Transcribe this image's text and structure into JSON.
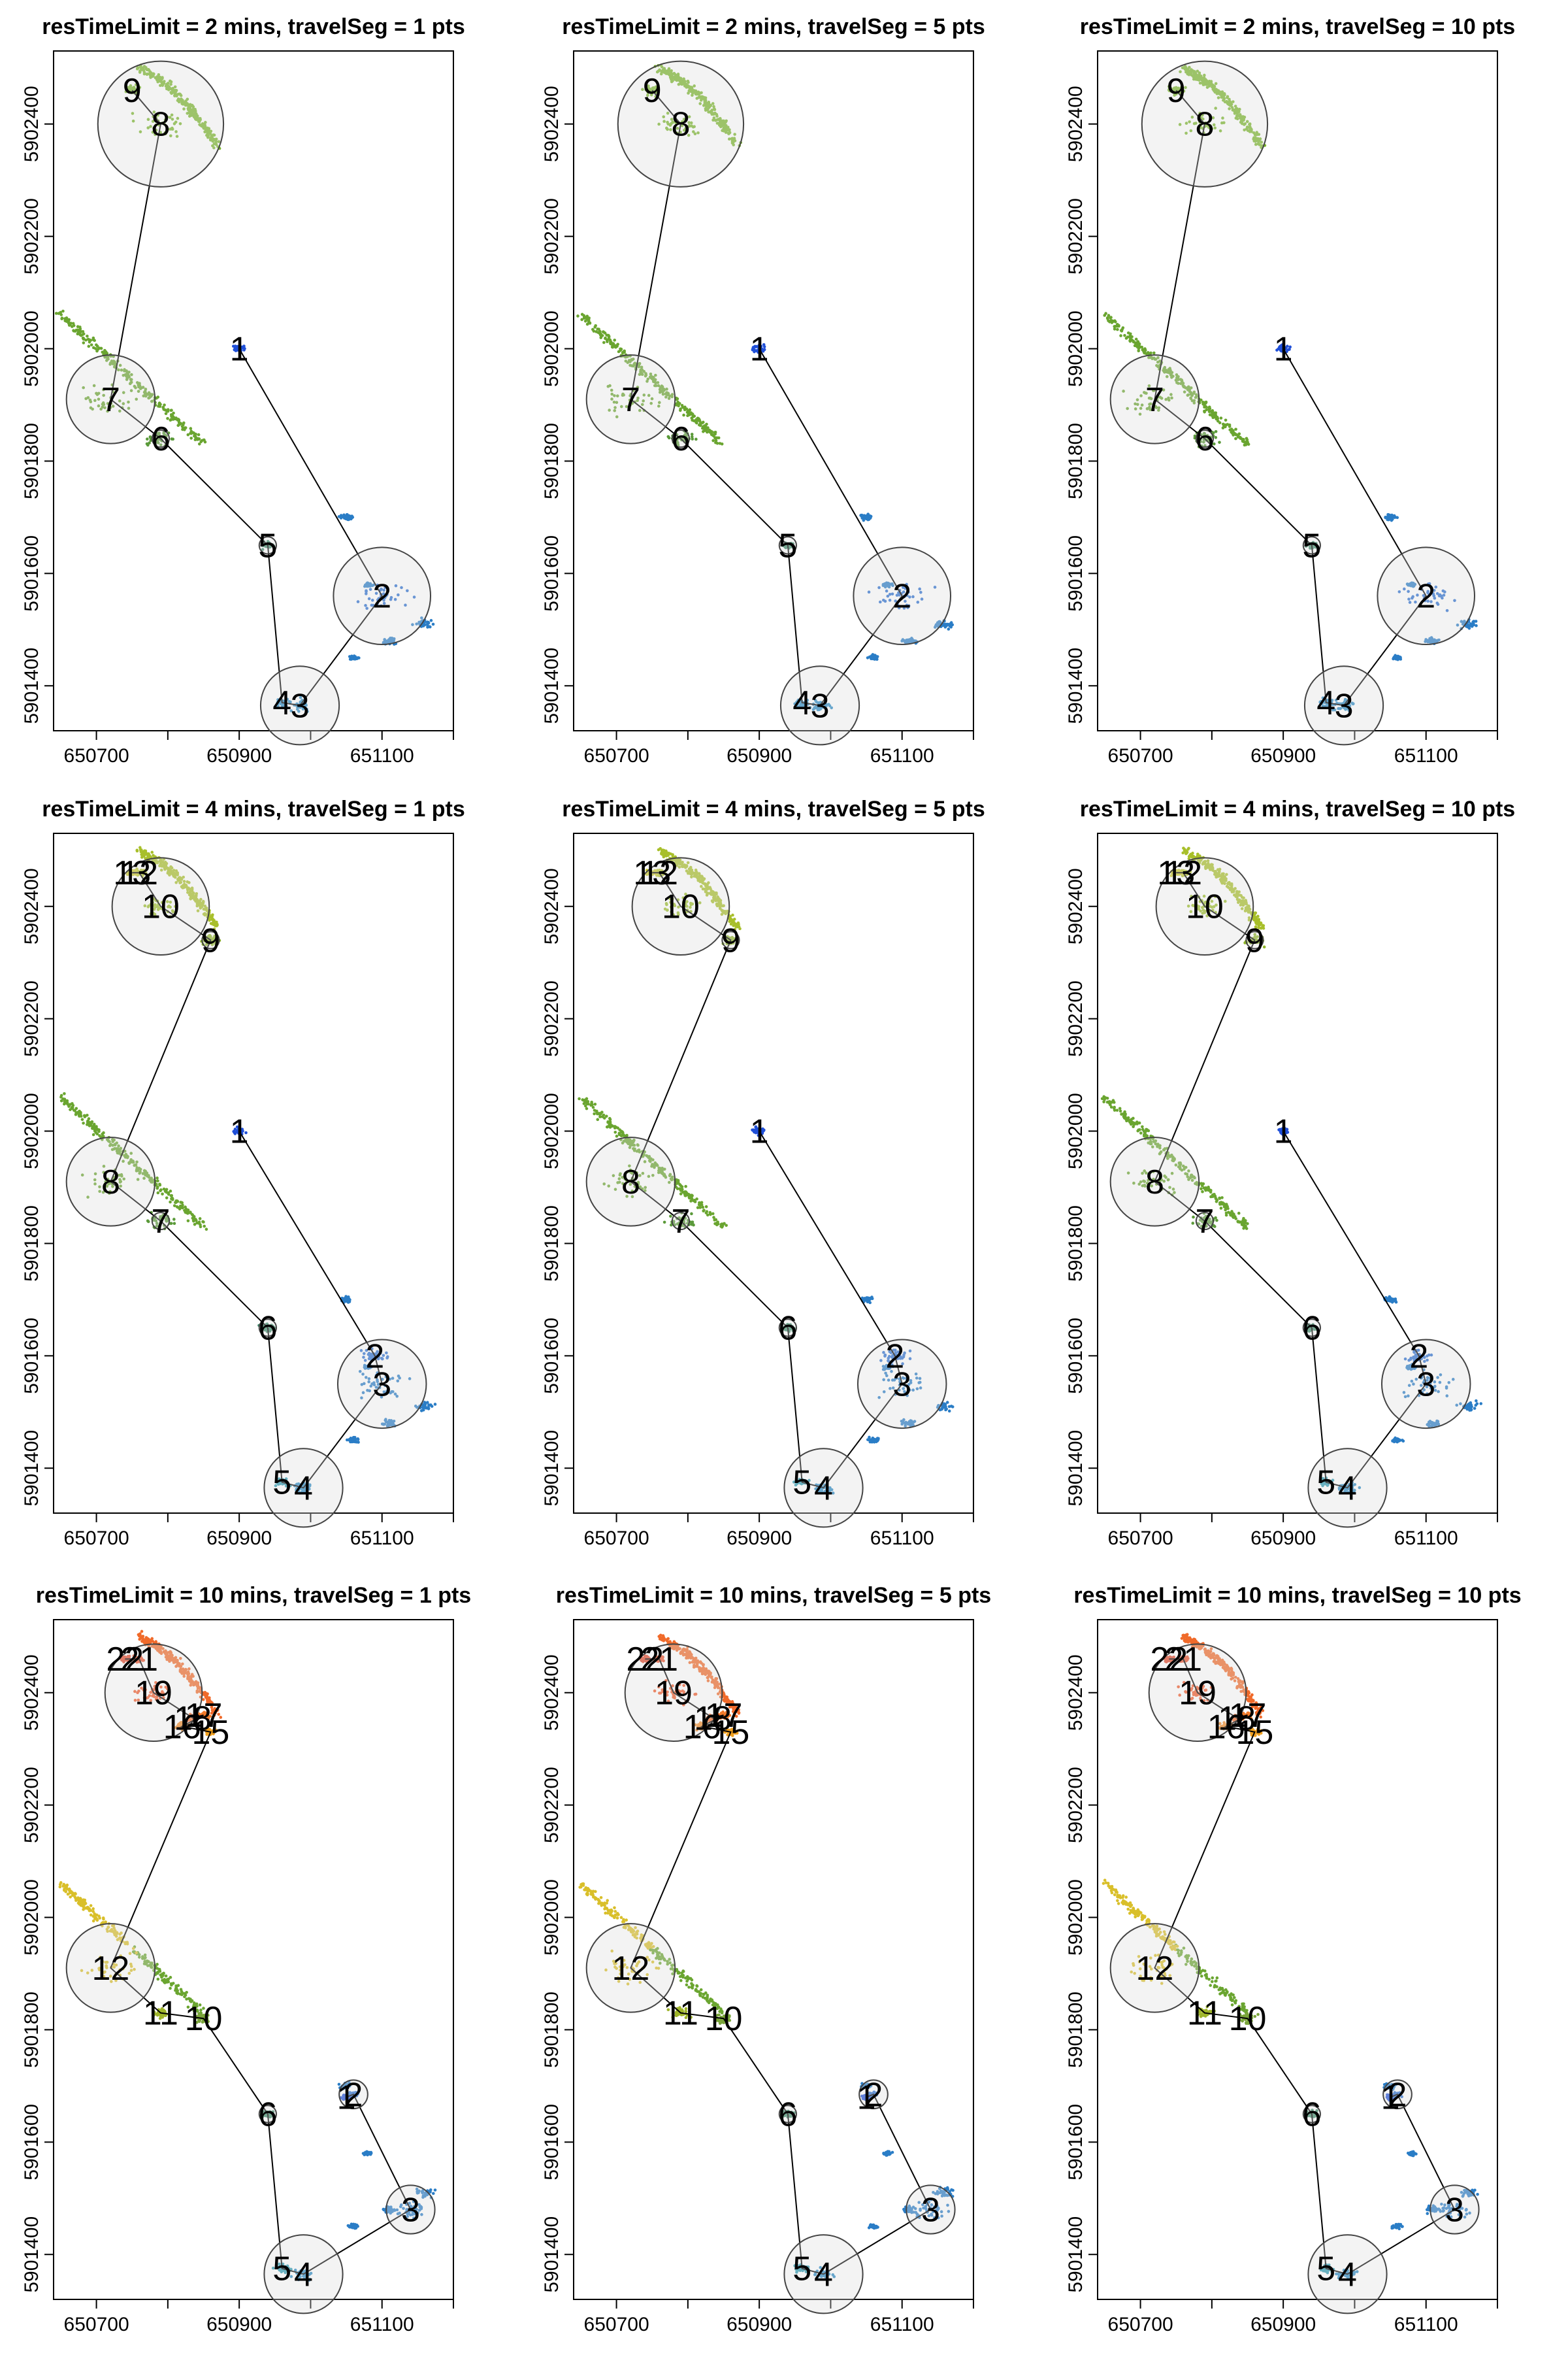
{
  "figure": {
    "rows": [
      {
        "resTimeLimit": "2 mins",
        "site_labels": [
          "1",
          "2",
          "4",
          "3",
          "5",
          "6",
          "7",
          "8",
          "9"
        ]
      },
      {
        "resTimeLimit": "4 mins",
        "site_labels": [
          "1",
          "2",
          "3",
          "4",
          "5",
          "6",
          "7",
          "8",
          "9",
          "10",
          "12",
          "13"
        ]
      },
      {
        "resTimeLimit": "10 mins",
        "site_labels": [
          "1",
          "2",
          "3",
          "4",
          "5",
          "6",
          "10",
          "11",
          "12",
          "15",
          "16",
          "17",
          "18",
          "19",
          "21",
          "22"
        ]
      }
    ],
    "cols": [
      "1 pts",
      "5 pts",
      "10 pts"
    ]
  },
  "chart_data": [
    {
      "type": "scatter",
      "title": "resTimeLimit = 2 mins, travelSeg = 1 pts",
      "x_ticks": [
        "650700",
        "650900",
        "651100"
      ],
      "y_ticks": [
        "5901400",
        "5901600",
        "5901800",
        "5902000",
        "5902200",
        "5902400"
      ],
      "xlim": [
        650640,
        651200
      ],
      "ylim": [
        5901320,
        5902530
      ]
    },
    {
      "type": "scatter",
      "title": "resTimeLimit = 2 mins, travelSeg = 5 pts",
      "x_ticks": [
        "650700",
        "650900",
        "651100"
      ],
      "y_ticks": [
        "5901400",
        "5901600",
        "5901800",
        "5902000",
        "5902200",
        "5902400"
      ],
      "xlim": [
        650640,
        651200
      ],
      "ylim": [
        5901320,
        5902530
      ]
    },
    {
      "type": "scatter",
      "title": "resTimeLimit = 2 mins, travelSeg = 10 pts",
      "x_ticks": [
        "650700",
        "650900",
        "651100"
      ],
      "y_ticks": [
        "5901400",
        "5901600",
        "5901800",
        "5902000",
        "5902200",
        "5902400"
      ],
      "xlim": [
        650640,
        651200
      ],
      "ylim": [
        5901320,
        5902530
      ]
    },
    {
      "type": "scatter",
      "title": "resTimeLimit = 4 mins, travelSeg = 1 pts",
      "x_ticks": [
        "650700",
        "650900",
        "651100"
      ],
      "y_ticks": [
        "5901400",
        "5901600",
        "5901800",
        "5902000",
        "5902200",
        "5902400"
      ],
      "xlim": [
        650640,
        651200
      ],
      "ylim": [
        5901320,
        5902530
      ]
    },
    {
      "type": "scatter",
      "title": "resTimeLimit = 4 mins, travelSeg = 5 pts",
      "x_ticks": [
        "650700",
        "650900",
        "651100"
      ],
      "y_ticks": [
        "5901400",
        "5901600",
        "5901800",
        "5902000",
        "5902200",
        "5902400"
      ],
      "xlim": [
        650640,
        651200
      ],
      "ylim": [
        5901320,
        5902530
      ]
    },
    {
      "type": "scatter",
      "title": "resTimeLimit = 4 mins, travelSeg = 10 pts",
      "x_ticks": [
        "650700",
        "650900",
        "651100"
      ],
      "y_ticks": [
        "5901400",
        "5901600",
        "5901800",
        "5902000",
        "5902200",
        "5902400"
      ],
      "xlim": [
        650640,
        651200
      ],
      "ylim": [
        5901320,
        5902530
      ]
    },
    {
      "type": "scatter",
      "title": "resTimeLimit = 10 mins, travelSeg = 1 pts",
      "x_ticks": [
        "650700",
        "650900",
        "651100"
      ],
      "y_ticks": [
        "5901400",
        "5901600",
        "5901800",
        "5902000",
        "5902200",
        "5902400"
      ],
      "xlim": [
        650640,
        651200
      ],
      "ylim": [
        5901320,
        5902530
      ]
    },
    {
      "type": "scatter",
      "title": "resTimeLimit = 10 mins, travelSeg = 5 pts",
      "x_ticks": [
        "650700",
        "650900",
        "651100"
      ],
      "y_ticks": [
        "5901400",
        "5901600",
        "5901800",
        "5902000",
        "5902200",
        "5902400"
      ],
      "xlim": [
        650640,
        651200
      ],
      "ylim": [
        5901320,
        5902530
      ]
    },
    {
      "type": "scatter",
      "title": "resTimeLimit = 10 mins, travelSeg = 10 pts",
      "x_ticks": [
        "650700",
        "650900",
        "651100"
      ],
      "y_ticks": [
        "5901400",
        "5901600",
        "5901800",
        "5902000",
        "5902200",
        "5902400"
      ],
      "xlim": [
        650640,
        651200
      ],
      "ylim": [
        5901320,
        5902530
      ]
    }
  ],
  "sites": {
    "2 mins": [
      {
        "label": "1",
        "x": 650900,
        "y": 5902000,
        "r": 0,
        "color": "#1f4fd8",
        "spread": 14
      },
      {
        "label": "2",
        "x": 651100,
        "y": 5901560,
        "r": 68,
        "color": "#2b6fd0",
        "spread": 60
      },
      {
        "label": "4",
        "x": 650960,
        "y": 5901370,
        "r": 0,
        "color": "#2a89c4",
        "spread": 18
      },
      {
        "label": "3",
        "x": 650985,
        "y": 5901365,
        "r": 55,
        "color": "#2a89c4",
        "spread": 24
      },
      {
        "label": "5",
        "x": 650940,
        "y": 5901650,
        "r": 12,
        "color": "#3f8a6a",
        "spread": 14
      },
      {
        "label": "6",
        "x": 650790,
        "y": 5901840,
        "r": 12,
        "color": "#5b9a3a",
        "spread": 30
      },
      {
        "label": "7",
        "x": 650720,
        "y": 5901910,
        "r": 62,
        "color": "#6aa530",
        "spread": 60
      },
      {
        "label": "8",
        "x": 650790,
        "y": 5902400,
        "r": 88,
        "color": "#7ab52c",
        "spread": 55
      },
      {
        "label": "9",
        "x": 650750,
        "y": 5902460,
        "r": 0,
        "color": "#7ab52c",
        "spread": 20
      }
    ],
    "4 mins": [
      {
        "label": "1",
        "x": 650900,
        "y": 5902000,
        "r": 0,
        "color": "#1f4fd8",
        "spread": 14
      },
      {
        "label": "2",
        "x": 651090,
        "y": 5901600,
        "r": 0,
        "color": "#2b6fd0",
        "spread": 30
      },
      {
        "label": "3",
        "x": 651100,
        "y": 5901550,
        "r": 62,
        "color": "#2a7dc6",
        "spread": 60
      },
      {
        "label": "4",
        "x": 650990,
        "y": 5901365,
        "r": 55,
        "color": "#2a89c4",
        "spread": 22
      },
      {
        "label": "5",
        "x": 650960,
        "y": 5901375,
        "r": 0,
        "color": "#2a99b0",
        "spread": 16
      },
      {
        "label": "6",
        "x": 650940,
        "y": 5901650,
        "r": 12,
        "color": "#3f8a6a",
        "spread": 14
      },
      {
        "label": "7",
        "x": 650790,
        "y": 5901840,
        "r": 12,
        "color": "#5b9a3a",
        "spread": 30
      },
      {
        "label": "8",
        "x": 650720,
        "y": 5901910,
        "r": 62,
        "color": "#6aa530",
        "spread": 60
      },
      {
        "label": "9",
        "x": 650860,
        "y": 5902340,
        "r": 12,
        "color": "#8fb52a",
        "spread": 20
      },
      {
        "label": "10",
        "x": 650790,
        "y": 5902400,
        "r": 68,
        "color": "#9cbd2a",
        "spread": 40
      },
      {
        "label": "12",
        "x": 650760,
        "y": 5902460,
        "r": 0,
        "color": "#b4c22a",
        "spread": 12
      },
      {
        "label": "13",
        "x": 650750,
        "y": 5902460,
        "r": 0,
        "color": "#c9c82a",
        "spread": 12
      }
    ],
    "10 mins": [
      {
        "label": "1",
        "x": 651050,
        "y": 5901680,
        "r": 0,
        "color": "#1f4fd8",
        "spread": 10
      },
      {
        "label": "2",
        "x": 651060,
        "y": 5901685,
        "r": 20,
        "color": "#2b6fd0",
        "spread": 10
      },
      {
        "label": "3",
        "x": 651140,
        "y": 5901480,
        "r": 34,
        "color": "#2a7dc6",
        "spread": 40
      },
      {
        "label": "4",
        "x": 650990,
        "y": 5901365,
        "r": 55,
        "color": "#2a89c4",
        "spread": 22
      },
      {
        "label": "5",
        "x": 650960,
        "y": 5901375,
        "r": 0,
        "color": "#2a99b0",
        "spread": 16
      },
      {
        "label": "6",
        "x": 650940,
        "y": 5901650,
        "r": 12,
        "color": "#3f8a6a",
        "spread": 14
      },
      {
        "label": "10",
        "x": 650850,
        "y": 5901820,
        "r": 0,
        "color": "#7aa53a",
        "spread": 20
      },
      {
        "label": "11",
        "x": 650790,
        "y": 5901830,
        "r": 0,
        "color": "#9fb52a",
        "spread": 20
      },
      {
        "label": "12",
        "x": 650720,
        "y": 5901910,
        "r": 62,
        "color": "#d9bf2a",
        "spread": 60
      },
      {
        "label": "15",
        "x": 650860,
        "y": 5902330,
        "r": 0,
        "color": "#f0a020",
        "spread": 14
      },
      {
        "label": "16",
        "x": 650820,
        "y": 5902340,
        "r": 0,
        "color": "#f08a28",
        "spread": 14
      },
      {
        "label": "17",
        "x": 650850,
        "y": 5902360,
        "r": 0,
        "color": "#f07a2a",
        "spread": 14
      },
      {
        "label": "18",
        "x": 650835,
        "y": 5902355,
        "r": 0,
        "color": "#f06a2a",
        "spread": 14
      },
      {
        "label": "19",
        "x": 650780,
        "y": 5902400,
        "r": 68,
        "color": "#f05a2a",
        "spread": 40
      },
      {
        "label": "21",
        "x": 650760,
        "y": 5902460,
        "r": 0,
        "color": "#e8502a",
        "spread": 12
      },
      {
        "label": "22",
        "x": 650740,
        "y": 5902460,
        "r": 0,
        "color": "#e0482a",
        "spread": 12
      }
    ]
  }
}
